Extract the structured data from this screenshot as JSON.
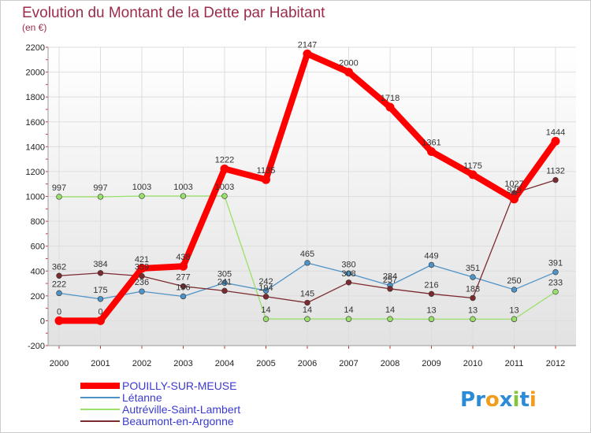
{
  "chart_data": {
    "type": "line",
    "title": "Evolution du Montant de la Dette par Habitant",
    "subtitle": "(en €)",
    "xlabel": "",
    "ylabel": "",
    "categories": [
      "2000",
      "2001",
      "2002",
      "2003",
      "2004",
      "2005",
      "2006",
      "2007",
      "2008",
      "2009",
      "2010",
      "2011",
      "2012"
    ],
    "ylim": [
      -200,
      2200
    ],
    "yticks": [
      "-200",
      "0",
      "200",
      "400",
      "600",
      "800",
      "1000",
      "1200",
      "1400",
      "1600",
      "1800",
      "2000",
      "2200"
    ],
    "grid": true,
    "legend_position": "bottom-left",
    "series": [
      {
        "name": "POUILLY-SUR-MEUSE",
        "color": "#ff0000",
        "values": [
          0,
          0,
          421,
          438,
          1222,
          1135,
          2147,
          2000,
          1718,
          1361,
          1175,
          979,
          1444
        ]
      },
      {
        "name": "Létanne",
        "color": "#4e93c7",
        "values": [
          222,
          175,
          236,
          196,
          305,
          242,
          465,
          380,
          284,
          449,
          351,
          250,
          391
        ]
      },
      {
        "name": "Autréville-Saint-Lambert",
        "color": "#99e06a",
        "values": [
          997,
          997,
          1003,
          1003,
          1003,
          14,
          14,
          14,
          14,
          13,
          13,
          13,
          233
        ]
      },
      {
        "name": "Beaumont-en-Argonne",
        "color": "#7b2a30",
        "values": [
          362,
          384,
          359,
          277,
          241,
          194,
          145,
          308,
          257,
          216,
          183,
          1027,
          1132
        ]
      }
    ]
  },
  "logo": {
    "text": "Proxiti",
    "letters": [
      "P",
      "r",
      "o",
      "x",
      "i",
      "t",
      "i"
    ],
    "colors": [
      "#2c8bd6",
      "#2c8bd6",
      "#f29b1c",
      "#2c8bd6",
      "#86c440",
      "#2c8bd6",
      "#f29b1c"
    ]
  }
}
